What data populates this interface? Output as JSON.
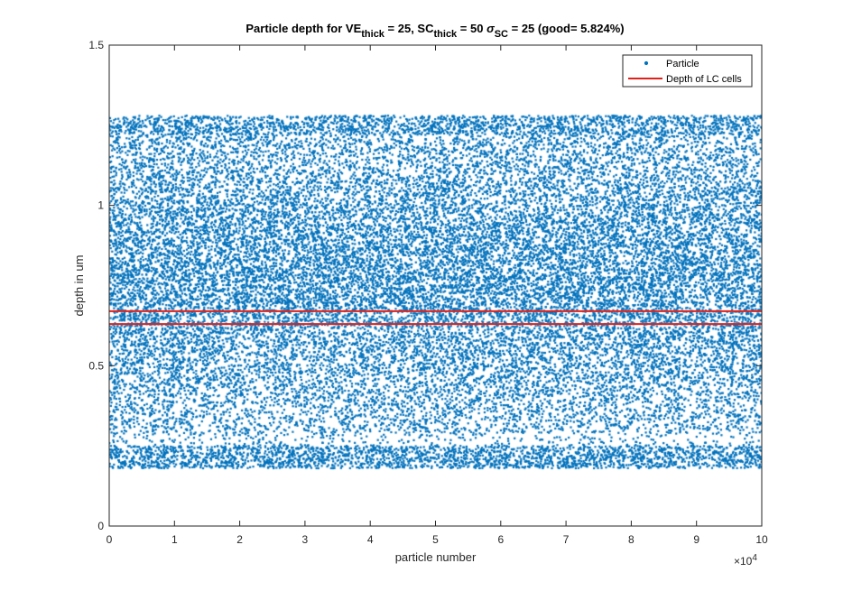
{
  "chart_data": {
    "type": "scatter",
    "title": {
      "prefix": "Particle depth for VE",
      "sub1": "thick",
      "mid1": " = 25, SC",
      "sub2": "thick",
      "mid2": " = 50 ",
      "sigma": "σ",
      "sub3": "SC",
      "suffix": " = 25 (good= 5.824%)"
    },
    "xlabel": "particle number",
    "ylabel": "depth in um",
    "xlim": [
      0,
      100000
    ],
    "ylim": [
      0,
      1.5
    ],
    "x_exponent_label": {
      "base": "×10",
      "exp": "4"
    },
    "xticks": [
      0,
      10000,
      20000,
      30000,
      40000,
      50000,
      60000,
      70000,
      80000,
      90000,
      100000
    ],
    "xtick_labels": [
      "0",
      "1",
      "2",
      "3",
      "4",
      "5",
      "6",
      "7",
      "8",
      "9",
      "10"
    ],
    "yticks": [
      0,
      0.5,
      1,
      1.5
    ],
    "ytick_labels": [
      "0",
      "0.5",
      "1",
      "1.5"
    ],
    "grid": false,
    "legend": {
      "placement": "top-right",
      "entries": [
        {
          "label": "Particle",
          "marker": "dot"
        },
        {
          "label": "Depth of LC cells",
          "marker": "line"
        }
      ]
    },
    "series": [
      {
        "name": "Particle",
        "kind": "scatter",
        "color": "#0072BD",
        "n_points": 100000,
        "x_range": [
          0,
          100000
        ],
        "y_range": [
          0.18,
          1.28
        ],
        "dense_bands": [
          [
            0.18,
            0.25
          ],
          [
            1.22,
            1.28
          ]
        ],
        "sparse_gaps": [
          [
            0.26,
            0.29
          ]
        ]
      },
      {
        "name": "Depth of LC cells",
        "kind": "hlines",
        "color": "#E0211B",
        "y": [
          0.63,
          0.67
        ]
      }
    ]
  }
}
